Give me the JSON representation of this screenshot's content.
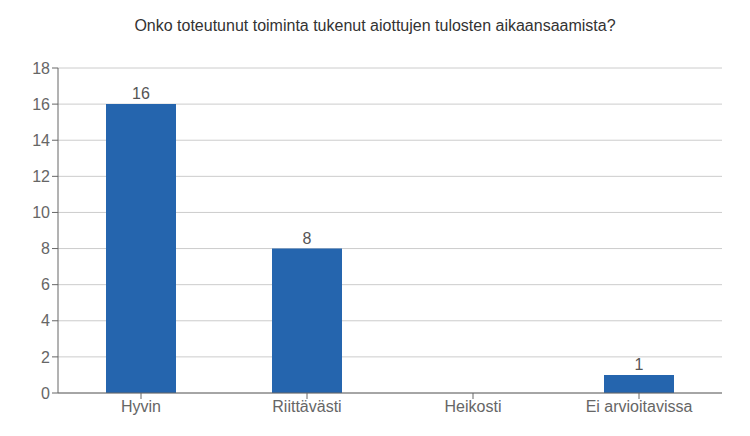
{
  "chart_data": {
    "type": "bar",
    "title": "Onko toteutunut toiminta tukenut aiottujen tulosten aikaansaamista?",
    "categories": [
      "Hyvin",
      "Riittävästi",
      "Heikosti",
      "Ei arvioitavissa"
    ],
    "values": [
      16,
      8,
      0,
      1
    ],
    "color": "#2565AE",
    "ylim": [
      0,
      18
    ],
    "yticks": [
      0,
      2,
      4,
      6,
      8,
      10,
      12,
      14,
      16,
      18
    ],
    "grid": true,
    "data_labels": true
  }
}
